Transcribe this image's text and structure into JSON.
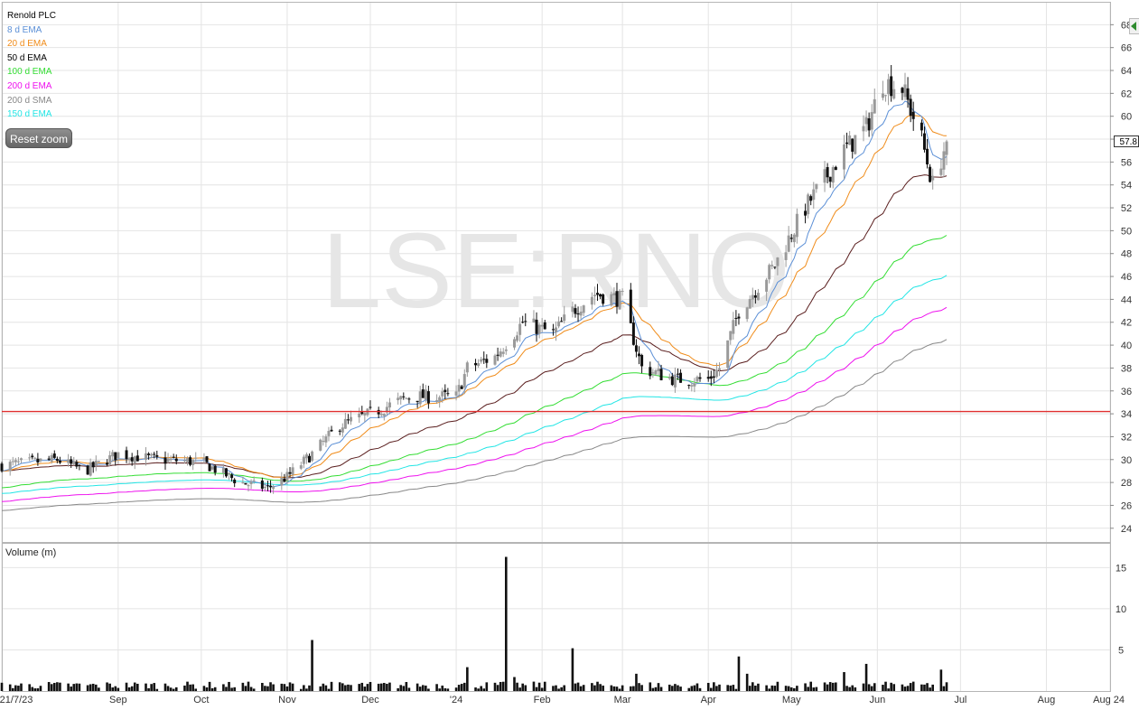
{
  "chart_data": {
    "type": "candlestick",
    "title": "Renold PLC",
    "watermark": "LSE:RNO",
    "legend": [
      {
        "label": "Renold PLC",
        "color": "#000000"
      },
      {
        "label": "8 d EMA",
        "color": "#5b8fd6"
      },
      {
        "label": "20 d EMA",
        "color": "#f08c1a"
      },
      {
        "label": "50 d EMA",
        "color": "#000000"
      },
      {
        "label": "100 d EMA",
        "color": "#33dd33"
      },
      {
        "label": "200 d EMA",
        "color": "#ee11ee"
      },
      {
        "label": "200 d SMA",
        "color": "#888888"
      },
      {
        "label": "150 d EMA",
        "color": "#22e5e5"
      }
    ],
    "reset_zoom_label": "Reset zoom",
    "price_axis": {
      "ticks": [
        "24",
        "26",
        "28",
        "30",
        "32",
        "34",
        "36",
        "38",
        "40",
        "42",
        "44",
        "46",
        "48",
        "50",
        "52",
        "54",
        "56",
        "58",
        "60",
        "62",
        "64",
        "66",
        "68"
      ],
      "range": [
        22.8,
        70
      ]
    },
    "volume_axis": {
      "title": "Volume (m)",
      "ticks": [
        "5",
        "10",
        "15"
      ],
      "range": [
        0,
        18
      ]
    },
    "x_axis": {
      "labels": [
        "21/7/23",
        "Sep",
        "Oct",
        "Nov",
        "Dec",
        "'24",
        "Feb",
        "Mar",
        "Apr",
        "May",
        "Jun",
        "Jul",
        "Aug",
        "Aug 24"
      ]
    },
    "last_price_label": "57.8",
    "horizontal_line": {
      "value": 34.2,
      "color": "#e03030"
    },
    "anchors": [
      [
        "2023-07-21",
        29.5
      ],
      [
        "2023-08-10",
        30
      ],
      [
        "2023-08-20",
        29
      ],
      [
        "2023-09-01",
        30.5
      ],
      [
        "2023-09-15",
        30
      ],
      [
        "2023-10-01",
        29.8
      ],
      [
        "2023-10-15",
        28
      ],
      [
        "2023-10-25",
        27.5
      ],
      [
        "2023-11-01",
        28.5
      ],
      [
        "2023-11-10",
        30.5
      ],
      [
        "2023-11-20",
        33
      ],
      [
        "2023-12-01",
        34
      ],
      [
        "2023-12-15",
        35.5
      ],
      [
        "2024-01-01",
        35.5
      ],
      [
        "2024-01-05",
        38
      ],
      [
        "2024-01-15",
        39
      ],
      [
        "2024-01-25",
        42
      ],
      [
        "2024-02-05",
        41
      ],
      [
        "2024-02-12",
        43
      ],
      [
        "2024-02-20",
        44.5
      ],
      [
        "2024-03-01",
        44
      ],
      [
        "2024-03-08",
        38
      ],
      [
        "2024-03-20",
        37
      ],
      [
        "2024-04-01",
        37
      ],
      [
        "2024-04-05",
        38
      ],
      [
        "2024-04-12",
        43
      ],
      [
        "2024-04-25",
        47
      ],
      [
        "2024-05-06",
        52
      ],
      [
        "2024-05-20",
        57
      ],
      [
        "2024-05-28",
        59
      ],
      [
        "2024-06-03",
        63
      ],
      [
        "2024-06-10",
        62.5
      ],
      [
        "2024-06-17",
        58
      ],
      [
        "2024-06-21",
        54
      ],
      [
        "2024-06-26",
        57.8
      ]
    ],
    "indicators": {
      "ema8": {
        "color": "#5b8fd6",
        "end": 56.5
      },
      "ema20": {
        "color": "#f08c1a",
        "end": 58.3
      },
      "ema50": {
        "color": "#5a1e1e",
        "start": 29,
        "end": 54.8
      },
      "ema100": {
        "color": "#33dd33",
        "start": 27.5,
        "end": 49.6
      },
      "ema150": {
        "color": "#22e5e5",
        "start": 27,
        "end": 46.1
      },
      "ema200": {
        "color": "#ee11ee",
        "start": 26.3,
        "end": 43.3
      },
      "sma200": {
        "color": "#888888",
        "start": 25.5,
        "end": 40.5
      }
    },
    "volume_spikes": [
      [
        "2023-11-10",
        6.2
      ],
      [
        "2024-01-05",
        2.9
      ],
      [
        "2024-01-19",
        16.3
      ],
      [
        "2024-01-22",
        1.7
      ],
      [
        "2024-02-12",
        5.2
      ],
      [
        "2024-03-06",
        2.1
      ],
      [
        "2024-04-12",
        4.2
      ],
      [
        "2024-04-15",
        2.1
      ],
      [
        "2024-05-28",
        3.3
      ],
      [
        "2024-05-20",
        2.3
      ],
      [
        "2024-06-24",
        2.6
      ]
    ],
    "colors": {
      "up": "#9a9a9a",
      "down": "#111111",
      "grid": "#e4e4e4",
      "watermark": "#e6e6e6"
    }
  }
}
